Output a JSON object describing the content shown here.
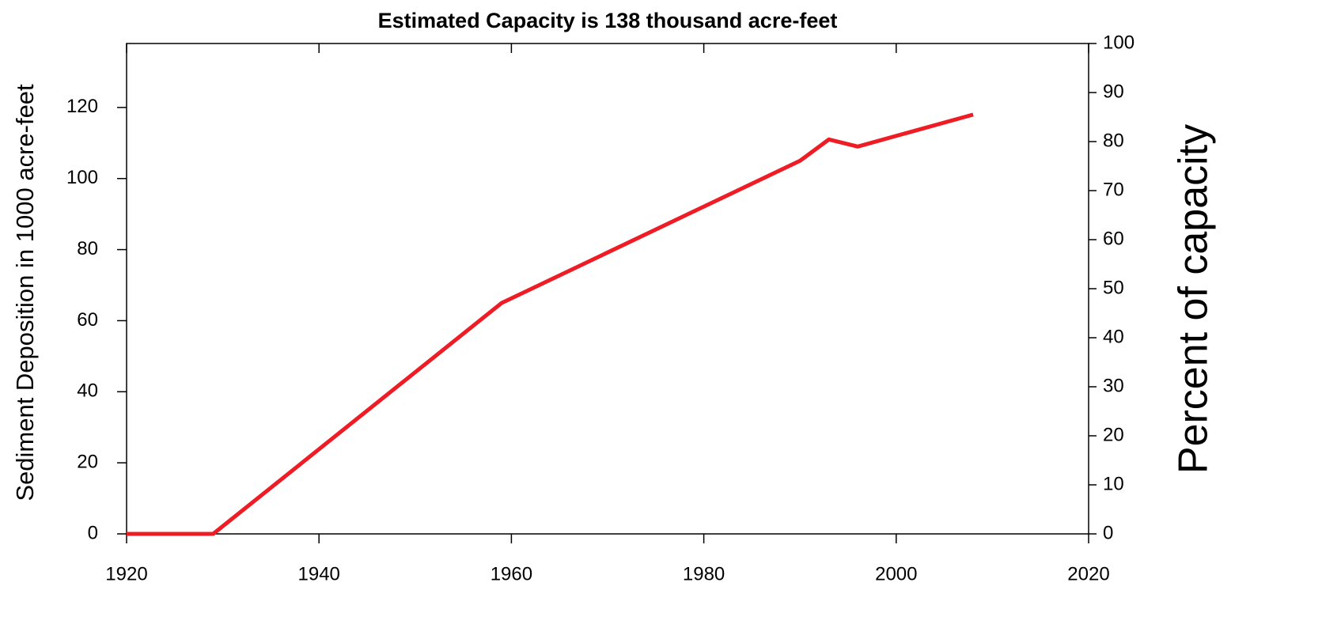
{
  "chart_data": {
    "type": "line",
    "title": "Estimated Capacity is 138 thousand acre-feet",
    "y_label": "Sediment Deposition in 1000 acre-feet",
    "y2_label": "Percent of capacity",
    "x": [
      1920,
      1929,
      1959,
      1990,
      1993,
      1996,
      2008
    ],
    "series": [
      {
        "name": "Sediment Deposition",
        "color": "#ee1c25",
        "values": [
          0,
          0,
          65,
          105,
          111,
          109,
          118
        ]
      }
    ],
    "xlim": [
      1920,
      2020
    ],
    "xticks": [
      1920,
      1940,
      1960,
      1980,
      2000,
      2020
    ],
    "ylim": [
      0,
      138
    ],
    "yticks": [
      0,
      20,
      40,
      60,
      80,
      100,
      120
    ],
    "y2lim": [
      0,
      100
    ],
    "y2ticks": [
      0,
      10,
      20,
      30,
      40,
      50,
      60,
      70,
      80,
      90,
      100
    ],
    "grid": false
  }
}
